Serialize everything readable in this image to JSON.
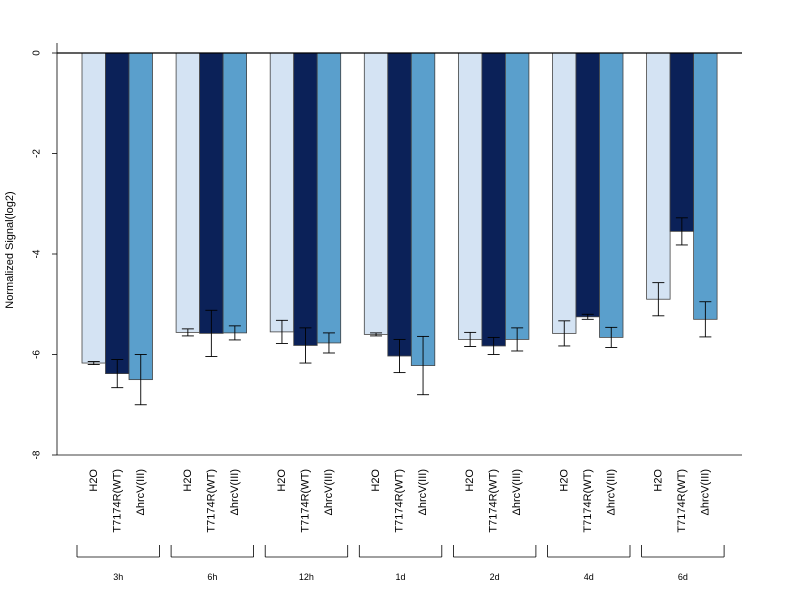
{
  "chart_data": {
    "type": "bar",
    "ylabel": "Normalized Signal(log2)",
    "xlabel": "",
    "ylim": [
      -8,
      0.2
    ],
    "yticks": [
      "0",
      "-2",
      "-4",
      "-6",
      "-8"
    ],
    "ytick_values": [
      0,
      -2,
      -4,
      -6,
      -8
    ],
    "categories": [
      "3h",
      "6h",
      "12h",
      "1d",
      "2d",
      "4d",
      "6d"
    ],
    "series": [
      {
        "name": "H2O",
        "color": "#d4e3f3",
        "values": [
          -6.17,
          -5.56,
          -5.55,
          -5.6,
          -5.7,
          -5.58,
          -4.9
        ],
        "errors": [
          0.03,
          0.07,
          0.23,
          0.03,
          0.14,
          0.25,
          0.33
        ]
      },
      {
        "name": "T7174R(WT)",
        "color": "#0b2158",
        "values": [
          -6.38,
          -5.58,
          -5.82,
          -6.03,
          -5.83,
          -5.25,
          -3.55
        ],
        "errors": [
          0.28,
          0.46,
          0.35,
          0.33,
          0.17,
          0.05,
          0.27
        ]
      },
      {
        "name": "ΔhrcV(III)",
        "color": "#5a9fcc",
        "values": [
          -6.5,
          -5.57,
          -5.77,
          -6.22,
          -5.7,
          -5.66,
          -5.3
        ],
        "errors": [
          0.5,
          0.14,
          0.2,
          0.58,
          0.23,
          0.2,
          0.35
        ]
      }
    ],
    "grid": false,
    "legend": "none"
  }
}
